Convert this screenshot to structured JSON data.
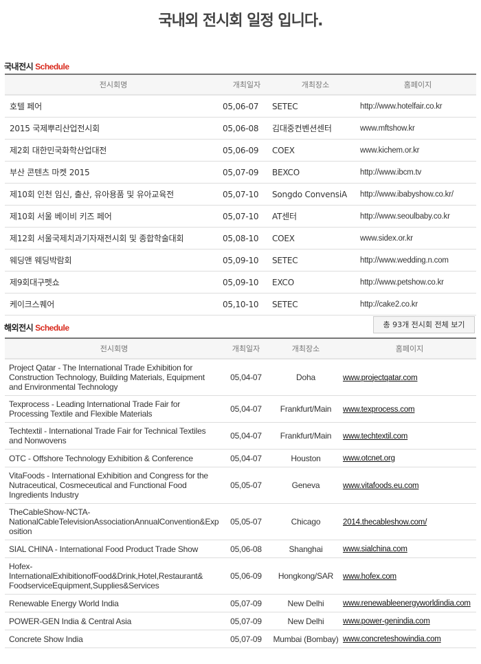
{
  "page_title": "국내외 전시회 일정 입니다.",
  "domestic": {
    "heading": "국내전시",
    "heading_accent": "Schedule",
    "columns": [
      "전시회명",
      "개최일자",
      "개최장소",
      "홈페이지"
    ],
    "rows": [
      [
        "호텔 페어",
        "05,06-07",
        "SETEC",
        "http://www.hotelfair.co.kr"
      ],
      [
        "2015 국제뿌리산업전시회",
        "05,06-08",
        "김대중컨벤션센터",
        "www.mftshow.kr"
      ],
      [
        "제2회 대한민국화학산업대전",
        "05,06-09",
        "COEX",
        "www.kichem.or.kr"
      ],
      [
        "부산 콘텐츠 마켓 2015",
        "05,07-09",
        "BEXCO",
        "http://www.ibcm.tv"
      ],
      [
        "제10회 인천 임신, 출산, 유아용품 및 유아교육전",
        "05,07-10",
        "Songdo ConvensiA",
        "http://www.ibabyshow.co.kr/"
      ],
      [
        "제10회 서울 베이비 키즈 페어",
        "05,07-10",
        "AT센터",
        "http://www.seoulbaby.co.kr"
      ],
      [
        "제12회 서울국제치과기자재전시회 및 종합학술대회",
        "05,08-10",
        "COEX",
        "www.sidex.or.kr"
      ],
      [
        "웨딩앤 웨딩박람회",
        "05,09-10",
        "SETEC",
        "http://www.wedding.n.com"
      ],
      [
        "제9회대구펫쇼",
        "05,09-10",
        "EXCO",
        "http://www.petshow.co.kr"
      ],
      [
        "케이크스퀘어",
        "05,10-10",
        "SETEC",
        "http://cake2.co.kr"
      ]
    ]
  },
  "overseas": {
    "heading": "해외전시",
    "heading_accent": "Schedule",
    "view_all_button": "총 93개 전시회 전체 보기",
    "columns": [
      "전시회명",
      "개최일자",
      "개최장소",
      "홈페이지"
    ],
    "rows": [
      [
        "Project Qatar - The International Trade Exhibition for Construction Technology, Building Materials, Equipment and Environmental Technology",
        "05,04-07",
        "Doha",
        "www.projectqatar.com"
      ],
      [
        "Texprocess - Leading International Trade Fair for Processing Textile and Flexible Materials",
        "05,04-07",
        "Frankfurt/Main",
        "www.texprocess.com"
      ],
      [
        "Techtextil - International Trade Fair for Technical Textiles and Nonwovens",
        "05,04-07",
        "Frankfurt/Main",
        "www.techtextil.com"
      ],
      [
        "OTC - Offshore Technology Exhibition & Conference",
        "05,04-07",
        "Houston",
        "www.otcnet.org"
      ],
      [
        "VitaFoods - International Exhibition and Congress for the Nutraceutical, Cosmeceutical and Functional Food Ingredients Industry",
        "05,05-07",
        "Geneva",
        "www.vitafoods.eu.com"
      ],
      [
        "TheCableShow-NCTA-NationalCableTelevisionAssociationAnnualConvention&Exposition",
        "05,05-07",
        "Chicago",
        "2014.thecableshow.com/"
      ],
      [
        "SIAL CHINA - International Food Product Trade Show",
        "05,06-08",
        "Shanghai",
        "www.sialchina.com"
      ],
      [
        "Hofex-InternationalExhibitionofFood&Drink,Hotel,Restaurant& FoodserviceEquipment,Supplies&Services",
        "05,06-09",
        "Hongkong/SAR",
        "www.hofex.com"
      ],
      [
        "Renewable Energy World India",
        "05,07-09",
        "New Delhi",
        "www.renewableenergyworldindia.com"
      ],
      [
        "POWER-GEN India & Central Asia",
        "05,07-09",
        "New Delhi",
        "www.power-genindia.com"
      ],
      [
        "Concrete Show India",
        "05,07-09",
        "Mumbai (Bombay)",
        "www.concreteshowindia.com"
      ]
    ]
  }
}
